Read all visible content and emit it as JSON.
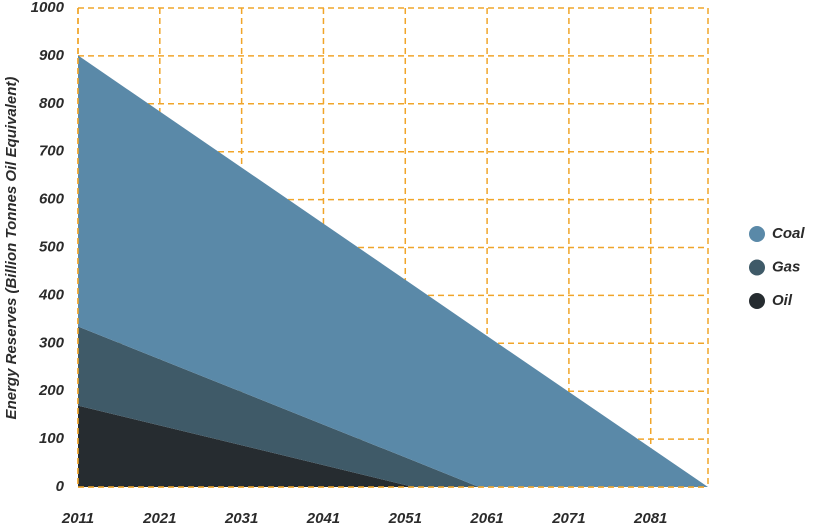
{
  "chart_data": {
    "type": "stacked-area",
    "y_label": "Energy Reserves (Billion Tonnes Oil Equivalent)",
    "x": [
      2011,
      2052,
      2060,
      2088
    ],
    "series": [
      {
        "name": "Coal",
        "color": "#5a89a8",
        "values": [
          566,
          366,
          327,
          0
        ]
      },
      {
        "name": "Gas",
        "color": "#3f5a68",
        "values": [
          165,
          55,
          0,
          0
        ]
      },
      {
        "name": "Oil",
        "color": "#262c30",
        "values": [
          170,
          0,
          0,
          0
        ]
      }
    ],
    "xlim": [
      2011,
      2088
    ],
    "xticks": [
      2011,
      2021,
      2031,
      2041,
      2051,
      2061,
      2071,
      2081
    ],
    "ylim": [
      0,
      1000
    ],
    "yticks": [
      0,
      100,
      200,
      300,
      400,
      500,
      600,
      700,
      800,
      900,
      1000
    ],
    "grid": true,
    "grid_color": "#f0a52a",
    "legend": "right"
  }
}
